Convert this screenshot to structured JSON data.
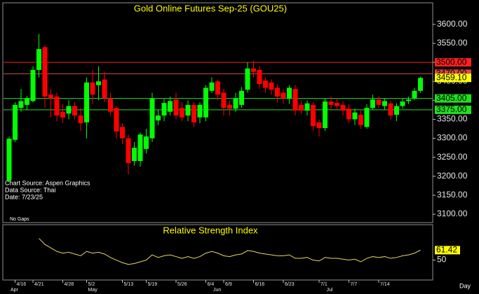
{
  "chart_data": [
    {
      "type": "candlestick",
      "title": "Gold Online Futures Sep-25 (GOU25)",
      "categories": [
        null,
        "4/16",
        null,
        null,
        "4/21",
        null,
        null,
        null,
        null,
        "4/28",
        null,
        null,
        null,
        "5/2",
        null,
        null,
        null,
        null,
        null,
        "5/13",
        null,
        null,
        null,
        "5/19",
        null,
        null,
        null,
        null,
        "5/26",
        null,
        null,
        null,
        null,
        "6/4",
        null,
        null,
        "6/9",
        null,
        null,
        null,
        null,
        "6/16",
        null,
        null,
        null,
        null,
        "6/23",
        null,
        null,
        null,
        null,
        null,
        "7/1",
        null,
        null,
        null,
        null,
        "7/7",
        null,
        null,
        null,
        null,
        "7/14",
        null,
        null,
        null,
        null,
        null,
        null,
        null
      ],
      "month_categories": [
        "Apr",
        null,
        null,
        null,
        null,
        null,
        null,
        null,
        null,
        null,
        null,
        null,
        null,
        "May",
        null,
        null,
        null,
        null,
        null,
        null,
        null,
        null,
        null,
        null,
        null,
        null,
        null,
        null,
        null,
        null,
        null,
        null,
        null,
        null,
        "Jun",
        null,
        null,
        null,
        null,
        null,
        null,
        null,
        null,
        null,
        null,
        null,
        null,
        null,
        null,
        null,
        null,
        null,
        null,
        "Jul",
        null,
        null,
        null,
        null,
        null,
        null,
        null,
        null,
        null,
        null,
        null,
        null,
        null,
        null,
        null,
        null
      ],
      "open": [
        3189,
        3296,
        3380,
        3388,
        3398,
        3480,
        3540,
        3415,
        3410,
        3370,
        3365,
        3385,
        3360,
        3342,
        3447,
        3440,
        3455,
        3405,
        3380,
        3330,
        3300,
        3240,
        3240,
        3272,
        3300,
        3347,
        3360,
        3370,
        3402,
        3380,
        3360,
        3388,
        3355,
        3355,
        3425,
        3450,
        3420,
        3388,
        3378,
        3388,
        3428,
        3484,
        3480,
        3452,
        3447,
        3433,
        3420,
        3405,
        3430,
        3388,
        3373,
        3388,
        3342,
        3327,
        3397,
        3393,
        3388,
        3378,
        3350,
        3362,
        3330,
        3380,
        3402,
        3385,
        3392,
        3362,
        3385,
        3398,
        3405,
        3425
      ],
      "high": [
        3305,
        3395,
        3430,
        3412,
        3490,
        3575,
        3545,
        3430,
        3420,
        3390,
        3400,
        3395,
        3380,
        3460,
        3480,
        3490,
        3475,
        3420,
        3385,
        3340,
        3310,
        3290,
        3315,
        3325,
        3420,
        3375,
        3405,
        3410,
        3420,
        3395,
        3400,
        3395,
        3395,
        3440,
        3460,
        3455,
        3430,
        3400,
        3420,
        3435,
        3500,
        3505,
        3490,
        3460,
        3455,
        3442,
        3430,
        3440,
        3440,
        3400,
        3400,
        3395,
        3350,
        3405,
        3410,
        3405,
        3398,
        3390,
        3378,
        3375,
        3390,
        3415,
        3410,
        3405,
        3400,
        3392,
        3405,
        3410,
        3432,
        3462
      ],
      "low": [
        3185,
        3290,
        3370,
        3375,
        3395,
        3460,
        3380,
        3355,
        3345,
        3340,
        3350,
        3350,
        3320,
        3300,
        3390,
        3400,
        3395,
        3360,
        3300,
        3285,
        3205,
        3228,
        3225,
        3260,
        3290,
        3335,
        3345,
        3360,
        3350,
        3345,
        3345,
        3330,
        3340,
        3345,
        3420,
        3400,
        3360,
        3360,
        3370,
        3380,
        3420,
        3460,
        3430,
        3420,
        3415,
        3395,
        3390,
        3390,
        3360,
        3365,
        3360,
        3320,
        3305,
        3320,
        3375,
        3375,
        3360,
        3340,
        3335,
        3325,
        3325,
        3375,
        3380,
        3375,
        3350,
        3345,
        3378,
        3390,
        3400,
        3420
      ],
      "close": [
        3299,
        3388,
        3398,
        3406,
        3480,
        3535,
        3410,
        3405,
        3360,
        3355,
        3385,
        3360,
        3340,
        3447,
        3415,
        3450,
        3405,
        3370,
        3318,
        3300,
        3235,
        3275,
        3310,
        3305,
        3405,
        3360,
        3393,
        3398,
        3360,
        3355,
        3388,
        3342,
        3388,
        3433,
        3447,
        3415,
        3380,
        3378,
        3405,
        3425,
        3484,
        3475,
        3443,
        3433,
        3428,
        3410,
        3405,
        3433,
        3373,
        3373,
        3392,
        3332,
        3327,
        3397,
        3388,
        3385,
        3373,
        3350,
        3368,
        3335,
        3380,
        3402,
        3388,
        3398,
        3360,
        3385,
        3397,
        3402,
        3425,
        3459.1
      ],
      "last_label": "3459.10",
      "up_color": "#00ff00",
      "down_color": "#ff0000",
      "ylim": [
        3078,
        3655
      ],
      "yticks": [
        {
          "value": 3100,
          "label": "3100.00"
        },
        {
          "value": 3150,
          "label": "3150.00"
        },
        {
          "value": 3200,
          "label": "3200.00"
        },
        {
          "value": 3250,
          "label": "3250.00"
        },
        {
          "value": 3300,
          "label": "3300.00"
        },
        {
          "value": 3350,
          "label": "3350.00"
        },
        {
          "value": 3400,
          "label": "3400.00"
        },
        {
          "value": 3450,
          "label": "3450.00"
        },
        {
          "value": 3500,
          "label": "3500.00"
        },
        {
          "value": 3550,
          "label": "3550.00"
        },
        {
          "value": 3600,
          "label": "3600.00"
        }
      ],
      "levels": [
        {
          "value": 3500,
          "label": "3500.00",
          "color": "#ff2020"
        },
        {
          "value": 3470,
          "label": "3470.00",
          "color": "#e04848"
        },
        {
          "value": 3405,
          "label": "3405.00",
          "color": "#20e020"
        },
        {
          "value": 3375,
          "label": "3375.00",
          "color": "#20e020"
        }
      ],
      "annotations": [
        "Chart Source: Aspen Graphics",
        "Data Source: Thai",
        "Date:   7/23/25"
      ],
      "note": "No Gaps"
    },
    {
      "type": "line",
      "title": "Relative Strength Index",
      "color": "#e8d860",
      "values": [
        null,
        null,
        null,
        null,
        null,
        75,
        68,
        64,
        60,
        58,
        59,
        57,
        55,
        60,
        58,
        59,
        57,
        53,
        50,
        47,
        45,
        46,
        48,
        50,
        56,
        53,
        55,
        56,
        54,
        52,
        54,
        52,
        54,
        58,
        60,
        58,
        55,
        54,
        56,
        57,
        61,
        60,
        58,
        57,
        56,
        55,
        55,
        56,
        52,
        52,
        53,
        50,
        49,
        53,
        52,
        52,
        51,
        50,
        51,
        48,
        52,
        54,
        53,
        54,
        52,
        53,
        55,
        56,
        58,
        61.42
      ],
      "ylim": [
        27,
        90
      ],
      "yticks": [
        50
      ],
      "x_unit": "Day"
    }
  ]
}
